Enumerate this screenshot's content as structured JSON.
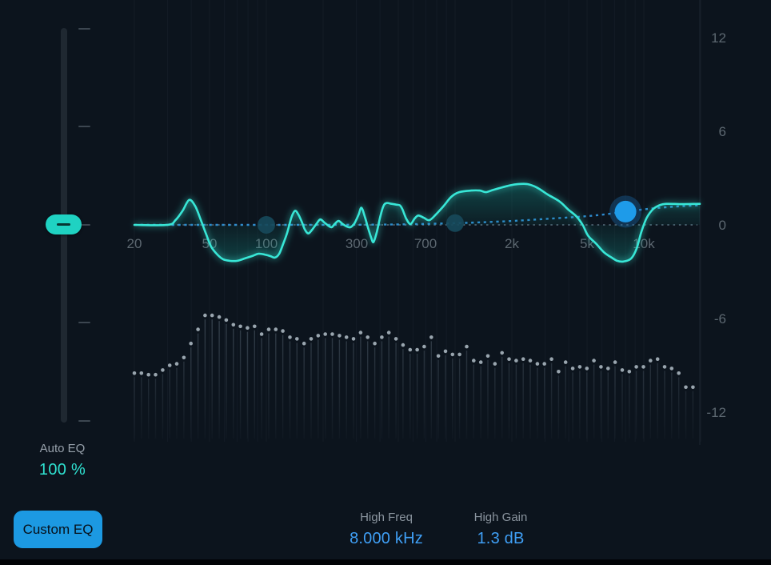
{
  "auto_eq": {
    "label": "Auto EQ",
    "value": "100 %"
  },
  "custom_eq_button": {
    "label": "Custom EQ"
  },
  "readouts": [
    {
      "label": "High Freq",
      "value": "8.000 kHz"
    },
    {
      "label": "High Gain",
      "value": "1.3 dB"
    }
  ],
  "colors": {
    "background": "#0c141d",
    "match_curve": "#38e6d6",
    "curve_fill": "#19b3a4",
    "custom_curve_dotted": "#2f8fd6",
    "zero_line_dotted": "#7d98ac",
    "control_point": "#17495a",
    "selected_handle": "#1e9be9",
    "selected_handle_halo": "#1a6aa8",
    "slider_accent": "#1fd2c2",
    "button_blue": "#1c99e2",
    "value_blue": "#3f9ff5",
    "value_cyan": "#2fe2d1",
    "axis_text": "#5c6770",
    "spectrum_dot": "#a9b5bf"
  },
  "chart_data": {
    "type": "line",
    "title": "Auto EQ frequency response with spectrum analyzer",
    "x_axis": {
      "scale": "log",
      "unit": "Hz",
      "min_hz": 20,
      "max_hz": 20000,
      "tick_hz": [
        20,
        50,
        100,
        300,
        700,
        2000,
        5000,
        10000
      ],
      "tick_labels": [
        "20",
        "50",
        "100",
        "300",
        "700",
        "2k",
        "5k",
        "10k"
      ],
      "grid_hz": [
        20,
        30,
        40,
        50,
        60,
        70,
        80,
        90,
        100,
        200,
        300,
        400,
        500,
        600,
        700,
        800,
        900,
        1000,
        2000,
        3000,
        4000,
        5000,
        6000,
        7000,
        8000,
        9000,
        10000,
        20000
      ]
    },
    "y_axis": {
      "unit": "dB",
      "tick_db": [
        12,
        6,
        0,
        -6,
        -12
      ],
      "tick_labels": [
        "12",
        "6",
        "0",
        "-6",
        "-12"
      ]
    },
    "zero_line_db": 0,
    "match_curve_points": [
      [
        20,
        0
      ],
      [
        30,
        0
      ],
      [
        33,
        0.3
      ],
      [
        36,
        0.9
      ],
      [
        39,
        1.6
      ],
      [
        42,
        1.2
      ],
      [
        45,
        0.3
      ],
      [
        48,
        -0.6
      ],
      [
        51,
        -1.4
      ],
      [
        55,
        -1.9
      ],
      [
        59,
        -2.2
      ],
      [
        64,
        -2.3
      ],
      [
        70,
        -2.3
      ],
      [
        77,
        -2.15
      ],
      [
        84,
        -2.0
      ],
      [
        91,
        -1.85
      ],
      [
        98,
        -1.9
      ],
      [
        105,
        -2.0
      ],
      [
        111,
        -2.1
      ],
      [
        117,
        -1.85
      ],
      [
        123,
        -1.2
      ],
      [
        129,
        -0.5
      ],
      [
        136,
        0.5
      ],
      [
        142,
        0.9
      ],
      [
        148,
        0.65
      ],
      [
        154,
        0.2
      ],
      [
        160,
        -0.3
      ],
      [
        167,
        -0.55
      ],
      [
        175,
        -0.3
      ],
      [
        184,
        0.05
      ],
      [
        193,
        0.35
      ],
      [
        203,
        0.15
      ],
      [
        213,
        -0.05
      ],
      [
        222,
        -0.15
      ],
      [
        230,
        0.05
      ],
      [
        241,
        0.25
      ],
      [
        254,
        0.05
      ],
      [
        266,
        -0.1
      ],
      [
        279,
        -0.15
      ],
      [
        293,
        0.1
      ],
      [
        308,
        0.65
      ],
      [
        319,
        1.1
      ],
      [
        333,
        0.5
      ],
      [
        346,
        -0.2
      ],
      [
        360,
        -0.85
      ],
      [
        370,
        -1.1
      ],
      [
        385,
        -0.45
      ],
      [
        401,
        0.5
      ],
      [
        417,
        1.2
      ],
      [
        433,
        1.4
      ],
      [
        461,
        1.35
      ],
      [
        487,
        1.3
      ],
      [
        510,
        1.25
      ],
      [
        526,
        1.0
      ],
      [
        551,
        0.4
      ],
      [
        580,
        0.05
      ],
      [
        610,
        0.4
      ],
      [
        639,
        0.6
      ],
      [
        684,
        0.45
      ],
      [
        731,
        0.3
      ],
      [
        789,
        0.65
      ],
      [
        868,
        1.2
      ],
      [
        955,
        1.8
      ],
      [
        1051,
        2.1
      ],
      [
        1216,
        2.2
      ],
      [
        1352,
        2.2
      ],
      [
        1458,
        2.1
      ],
      [
        1601,
        2.25
      ],
      [
        1900,
        2.5
      ],
      [
        2103,
        2.6
      ],
      [
        2400,
        2.62
      ],
      [
        2706,
        2.4
      ],
      [
        3092,
        1.95
      ],
      [
        3581,
        1.5
      ],
      [
        3962,
        1.0
      ],
      [
        4390,
        0.55
      ],
      [
        4741,
        0.0
      ],
      [
        5072,
        -0.7
      ],
      [
        5581,
        -1.2
      ],
      [
        6140,
        -1.75
      ],
      [
        6757,
        -2.1
      ],
      [
        7218,
        -2.3
      ],
      [
        7792,
        -2.35
      ],
      [
        8573,
        -2.15
      ],
      [
        9171,
        -1.5
      ],
      [
        9700,
        -0.45
      ],
      [
        10360,
        0.45
      ],
      [
        11180,
        1.0
      ],
      [
        12070,
        1.25
      ],
      [
        13100,
        1.35
      ],
      [
        16000,
        1.33
      ],
      [
        19800,
        1.35
      ]
    ],
    "custom_curve_points": [
      [
        20,
        0
      ],
      [
        100,
        0
      ],
      [
        300,
        0.01
      ],
      [
        500,
        0.03
      ],
      [
        800,
        0.08
      ],
      [
        1200,
        0.14
      ],
      [
        2000,
        0.25
      ],
      [
        3000,
        0.38
      ],
      [
        4500,
        0.52
      ],
      [
        6000,
        0.65
      ],
      [
        8000,
        0.85
      ],
      [
        10500,
        1.02
      ],
      [
        13000,
        1.13
      ],
      [
        16000,
        1.2
      ],
      [
        19800,
        1.26
      ]
    ],
    "control_points": [
      {
        "name": "low",
        "hz": 100,
        "gain_db": 0,
        "selected": false
      },
      {
        "name": "mid",
        "hz": 1000,
        "gain_db": 0,
        "selected": false
      },
      {
        "name": "high",
        "hz": 8000,
        "gain_db": 1.3,
        "selected": true
      }
    ],
    "spectrum_levels_db": [
      -9.5,
      -9.5,
      -9.6,
      -9.6,
      -9.3,
      -9.0,
      -8.9,
      -8.5,
      -7.6,
      -6.7,
      -5.8,
      -5.8,
      -5.9,
      -6.1,
      -6.4,
      -6.5,
      -6.6,
      -6.5,
      -7.0,
      -6.7,
      -6.7,
      -6.8,
      -7.2,
      -7.3,
      -7.6,
      -7.3,
      -7.1,
      -7.0,
      -7.0,
      -7.1,
      -7.2,
      -7.3,
      -6.9,
      -7.2,
      -7.6,
      -7.2,
      -6.9,
      -7.3,
      -7.7,
      -8.0,
      -8.0,
      -7.8,
      -7.2,
      -8.4,
      -8.1,
      -8.3,
      -8.3,
      -7.8,
      -8.7,
      -8.8,
      -8.4,
      -8.9,
      -8.2,
      -8.6,
      -8.7,
      -8.6,
      -8.7,
      -8.9,
      -8.9,
      -8.6,
      -9.4,
      -8.8,
      -9.2,
      -9.1,
      -9.2,
      -8.7,
      -9.1,
      -9.2,
      -8.8,
      -9.3,
      -9.4,
      -9.1,
      -9.1,
      -8.7,
      -8.6,
      -9.1,
      -9.2,
      -9.5,
      -10.4,
      -10.4
    ]
  }
}
